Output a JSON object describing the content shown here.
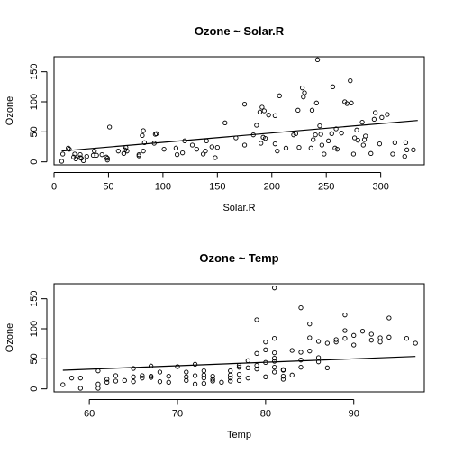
{
  "chart_data": [
    {
      "type": "scatter",
      "title": "Ozone ~ Solar.R",
      "xlabel": "Solar.R",
      "ylabel": "Ozone",
      "xlim": [
        0,
        340
      ],
      "ylim": [
        -5,
        175
      ],
      "xticks": [
        0,
        50,
        100,
        150,
        200,
        250,
        300
      ],
      "yticks": [
        0,
        50,
        100,
        150
      ],
      "fit_line": {
        "x": [
          7,
          334
        ],
        "y": [
          18,
          69
        ]
      },
      "points": [
        [
          7,
          1
        ],
        [
          8,
          13
        ],
        [
          13,
          23
        ],
        [
          14,
          21
        ],
        [
          18,
          8
        ],
        [
          19,
          13
        ],
        [
          20,
          5
        ],
        [
          24,
          7
        ],
        [
          24,
          12
        ],
        [
          25,
          6
        ],
        [
          27,
          2
        ],
        [
          30,
          9
        ],
        [
          36,
          11
        ],
        [
          37,
          18
        ],
        [
          39,
          11
        ],
        [
          44,
          12
        ],
        [
          48,
          8
        ],
        [
          49,
          6
        ],
        [
          49,
          3
        ],
        [
          51,
          58
        ],
        [
          59,
          18
        ],
        [
          64,
          14
        ],
        [
          65,
          20
        ],
        [
          66,
          24
        ],
        [
          67,
          18
        ],
        [
          78,
          12
        ],
        [
          78,
          10
        ],
        [
          81,
          44
        ],
        [
          82,
          52
        ],
        [
          82,
          18
        ],
        [
          83,
          32
        ],
        [
          92,
          31
        ],
        [
          93,
          46
        ],
        [
          94,
          47
        ],
        [
          101,
          21
        ],
        [
          112,
          23
        ],
        [
          113,
          12
        ],
        [
          118,
          15
        ],
        [
          120,
          35
        ],
        [
          127,
          28
        ],
        [
          131,
          21
        ],
        [
          137,
          13
        ],
        [
          139,
          18
        ],
        [
          140,
          35
        ],
        [
          145,
          25
        ],
        [
          148,
          7
        ],
        [
          150,
          24
        ],
        [
          157,
          65
        ],
        [
          167,
          40
        ],
        [
          175,
          96
        ],
        [
          175,
          28
        ],
        [
          183,
          45
        ],
        [
          186,
          61
        ],
        [
          189,
          83
        ],
        [
          190,
          31
        ],
        [
          191,
          91
        ],
        [
          192,
          41
        ],
        [
          193,
          85
        ],
        [
          194,
          39
        ],
        [
          197,
          78
        ],
        [
          203,
          30
        ],
        [
          203,
          77
        ],
        [
          205,
          18
        ],
        [
          207,
          110
        ],
        [
          213,
          23
        ],
        [
          220,
          45
        ],
        [
          222,
          47
        ],
        [
          224,
          86
        ],
        [
          225,
          24
        ],
        [
          228,
          123
        ],
        [
          229,
          108
        ],
        [
          230,
          115
        ],
        [
          236,
          23
        ],
        [
          237,
          86
        ],
        [
          238,
          37
        ],
        [
          240,
          45
        ],
        [
          241,
          98
        ],
        [
          242,
          170
        ],
        [
          244,
          60
        ],
        [
          245,
          46
        ],
        [
          246,
          28
        ],
        [
          248,
          13
        ],
        [
          252,
          35
        ],
        [
          255,
          47
        ],
        [
          256,
          125
        ],
        [
          258,
          23
        ],
        [
          259,
          55
        ],
        [
          260,
          21
        ],
        [
          264,
          48
        ],
        [
          267,
          100
        ],
        [
          269,
          97
        ],
        [
          272,
          135
        ],
        [
          273,
          98
        ],
        [
          275,
          13
        ],
        [
          276,
          40
        ],
        [
          278,
          53
        ],
        [
          279,
          36
        ],
        [
          283,
          66
        ],
        [
          284,
          28
        ],
        [
          285,
          37
        ],
        [
          286,
          43
        ],
        [
          291,
          14
        ],
        [
          294,
          71
        ],
        [
          295,
          82
        ],
        [
          299,
          30
        ],
        [
          301,
          74
        ],
        [
          306,
          79
        ],
        [
          311,
          13
        ],
        [
          313,
          32
        ],
        [
          322,
          9
        ],
        [
          323,
          32
        ],
        [
          324,
          20
        ],
        [
          330,
          20
        ]
      ]
    },
    {
      "type": "scatter",
      "title": "Ozone ~ Temp",
      "xlabel": "Temp",
      "ylabel": "Ozone",
      "xlim": [
        56,
        98
      ],
      "ylim": [
        -5,
        175
      ],
      "xticks": [
        60,
        70,
        80,
        90
      ],
      "yticks": [
        0,
        50,
        100,
        150
      ],
      "fit_line": {
        "x": [
          57,
          97
        ],
        "y": [
          31,
          54
        ]
      },
      "points": [
        [
          57,
          7
        ],
        [
          58,
          18
        ],
        [
          59,
          1
        ],
        [
          59,
          18
        ],
        [
          61,
          30
        ],
        [
          61,
          1
        ],
        [
          61,
          8
        ],
        [
          62,
          11
        ],
        [
          62,
          16
        ],
        [
          63,
          13
        ],
        [
          63,
          22
        ],
        [
          64,
          14
        ],
        [
          65,
          12
        ],
        [
          65,
          20
        ],
        [
          65,
          34
        ],
        [
          66,
          18
        ],
        [
          66,
          22
        ],
        [
          67,
          21
        ],
        [
          67,
          38
        ],
        [
          67,
          19
        ],
        [
          68,
          12
        ],
        [
          68,
          28
        ],
        [
          69,
          11
        ],
        [
          69,
          21
        ],
        [
          70,
          37
        ],
        [
          71,
          14
        ],
        [
          71,
          20
        ],
        [
          71,
          28
        ],
        [
          72,
          8
        ],
        [
          72,
          22
        ],
        [
          72,
          41
        ],
        [
          73,
          9
        ],
        [
          73,
          18
        ],
        [
          73,
          30
        ],
        [
          73,
          23
        ],
        [
          74,
          13
        ],
        [
          74,
          16
        ],
        [
          74,
          21
        ],
        [
          75,
          11
        ],
        [
          76,
          13
        ],
        [
          76,
          18
        ],
        [
          76,
          23
        ],
        [
          76,
          30
        ],
        [
          77,
          14
        ],
        [
          77,
          24
        ],
        [
          77,
          36
        ],
        [
          77,
          39
        ],
        [
          78,
          18
        ],
        [
          78,
          35
        ],
        [
          78,
          47
        ],
        [
          79,
          33
        ],
        [
          79,
          39
        ],
        [
          79,
          115
        ],
        [
          79,
          59
        ],
        [
          80,
          20
        ],
        [
          80,
          65
        ],
        [
          80,
          44
        ],
        [
          80,
          78
        ],
        [
          81,
          168
        ],
        [
          81,
          84
        ],
        [
          81,
          36
        ],
        [
          81,
          51
        ],
        [
          81,
          46
        ],
        [
          81,
          28
        ],
        [
          81,
          60
        ],
        [
          82,
          21
        ],
        [
          82,
          31
        ],
        [
          82,
          16
        ],
        [
          82,
          32
        ],
        [
          83,
          23
        ],
        [
          83,
          64
        ],
        [
          84,
          135
        ],
        [
          84,
          61
        ],
        [
          84,
          36
        ],
        [
          84,
          48
        ],
        [
          85,
          108
        ],
        [
          85,
          85
        ],
        [
          85,
          63
        ],
        [
          86,
          45
        ],
        [
          86,
          52
        ],
        [
          86,
          79
        ],
        [
          87,
          35
        ],
        [
          87,
          76
        ],
        [
          88,
          78
        ],
        [
          88,
          82
        ],
        [
          89,
          123
        ],
        [
          89,
          84
        ],
        [
          89,
          97
        ],
        [
          90,
          89
        ],
        [
          90,
          73
        ],
        [
          91,
          96
        ],
        [
          92,
          91
        ],
        [
          92,
          81
        ],
        [
          93,
          78
        ],
        [
          93,
          85
        ],
        [
          94,
          118
        ],
        [
          94,
          86
        ],
        [
          96,
          84
        ],
        [
          97,
          76
        ]
      ]
    }
  ]
}
